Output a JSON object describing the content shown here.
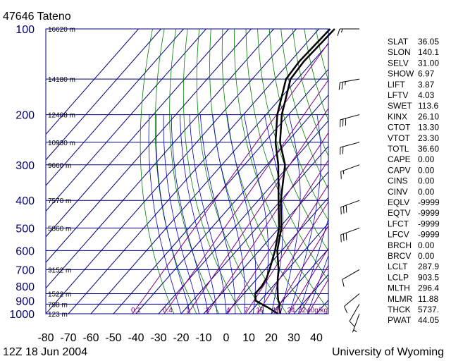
{
  "header": {
    "station": "47646  Tateno",
    "datetime": "12Z 18 Jun 2004",
    "credit": "University of Wyoming"
  },
  "colors": {
    "isobar": "#000080",
    "isotherm": "#000080",
    "dry_adiabat": "#008000",
    "moist_adiabat": "#0000cc",
    "mixing_ratio": "#800080",
    "profile": "#000000",
    "pressure_label": "#000066"
  },
  "chart_data": {
    "type": "line",
    "title": "47646  Tateno",
    "xlabel": "",
    "ylabel": "",
    "xlim": [
      -80,
      45
    ],
    "ylim": [
      1000,
      100
    ],
    "y_scale": "log",
    "x_ticks": [
      -80,
      -70,
      -60,
      -50,
      -40,
      -30,
      -20,
      -10,
      0,
      10,
      20,
      30,
      40
    ],
    "pressure_levels": [
      100,
      200,
      300,
      400,
      500,
      600,
      700,
      800,
      900,
      1000
    ],
    "isobar_lines": [
      100,
      150,
      200,
      250,
      300,
      400,
      500,
      600,
      700,
      850,
      925,
      1000
    ],
    "height_labels": [
      {
        "p": 100,
        "label": "16620 m"
      },
      {
        "p": 150,
        "label": "14180 m"
      },
      {
        "p": 200,
        "label": "12408 m"
      },
      {
        "p": 250,
        "label": "10930 m"
      },
      {
        "p": 300,
        "label": "9660 m"
      },
      {
        "p": 400,
        "label": "7570 m"
      },
      {
        "p": 500,
        "label": "5860 m"
      },
      {
        "p": 700,
        "label": "3152 m"
      },
      {
        "p": 850,
        "label": "1522 m"
      },
      {
        "p": 925,
        "label": "798 m"
      },
      {
        "p": 1000,
        "label": "123 m"
      }
    ],
    "mixing_ratio_labels": [
      {
        "w": 0.1,
        "label": "0.1"
      },
      {
        "w": 0.4,
        "label": "0.4"
      },
      {
        "w": 1,
        "label": "1"
      },
      {
        "w": 2,
        "label": "2"
      },
      {
        "w": 4,
        "label": "4"
      },
      {
        "w": 7,
        "label": "7"
      },
      {
        "w": 10,
        "label": "10"
      },
      {
        "w": 16,
        "label": "16"
      },
      {
        "w": 24,
        "label": "24"
      },
      {
        "w": 32,
        "label": "32"
      },
      {
        "w": 40,
        "label": "40g/kg"
      }
    ],
    "series": [
      {
        "name": "",
        "kind": "temperature",
        "points": [
          [
            1000,
            24
          ],
          [
            950,
            21
          ],
          [
            925,
            20
          ],
          [
            900,
            18
          ],
          [
            850,
            15
          ],
          [
            800,
            12
          ],
          [
            750,
            9
          ],
          [
            700,
            6
          ],
          [
            600,
            -2
          ],
          [
            500,
            -9
          ],
          [
            400,
            -20
          ],
          [
            300,
            -32
          ],
          [
            250,
            -43
          ],
          [
            200,
            -53
          ],
          [
            150,
            -63
          ],
          [
            130,
            -64
          ],
          [
            100,
            -63
          ]
        ]
      },
      {
        "name": "",
        "kind": "dewpoint",
        "points": [
          [
            1000,
            23
          ],
          [
            950,
            16
          ],
          [
            925,
            12
          ],
          [
            900,
            8
          ],
          [
            850,
            5
          ],
          [
            800,
            5
          ],
          [
            750,
            4
          ],
          [
            700,
            2
          ],
          [
            600,
            -3
          ],
          [
            500,
            -10
          ],
          [
            400,
            -21
          ],
          [
            300,
            -35
          ],
          [
            250,
            -45
          ],
          [
            200,
            -55
          ],
          [
            150,
            -65
          ],
          [
            130,
            -66
          ],
          [
            100,
            -65
          ]
        ]
      }
    ],
    "wind_barbs": [
      {
        "p": 100,
        "dir": 270,
        "kt": 15
      },
      {
        "p": 150,
        "dir": 260,
        "kt": 25
      },
      {
        "p": 200,
        "dir": 255,
        "kt": 30
      },
      {
        "p": 250,
        "dir": 255,
        "kt": 20
      },
      {
        "p": 300,
        "dir": 250,
        "kt": 15
      },
      {
        "p": 400,
        "dir": 250,
        "kt": 30
      },
      {
        "p": 500,
        "dir": 250,
        "kt": 30
      },
      {
        "p": 700,
        "dir": 240,
        "kt": 10
      },
      {
        "p": 850,
        "dir": 230,
        "kt": 10
      },
      {
        "p": 925,
        "dir": 210,
        "kt": 10
      },
      {
        "p": 1000,
        "dir": 200,
        "kt": 5
      }
    ]
  },
  "indices": [
    {
      "name": "SLAT",
      "value": "36.05"
    },
    {
      "name": "SLON",
      "value": "140.1"
    },
    {
      "name": "SELV",
      "value": "31.00"
    },
    {
      "name": "SHOW",
      "value": "6.97"
    },
    {
      "name": "LIFT",
      "value": "3.87"
    },
    {
      "name": "LFTV",
      "value": "4.03"
    },
    {
      "name": "SWET",
      "value": "113.6"
    },
    {
      "name": "KINX",
      "value": "26.10"
    },
    {
      "name": "CTOT",
      "value": "13.30"
    },
    {
      "name": "VTOT",
      "value": "23.30"
    },
    {
      "name": "TOTL",
      "value": "36.60"
    },
    {
      "name": "CAPE",
      "value": "0.00"
    },
    {
      "name": "CAPV",
      "value": "0.00"
    },
    {
      "name": "CINS",
      "value": "0.00"
    },
    {
      "name": "CINV",
      "value": "0.00"
    },
    {
      "name": "EQLV",
      "value": "-9999"
    },
    {
      "name": "EQTV",
      "value": "-9999"
    },
    {
      "name": "LFCT",
      "value": "-9999"
    },
    {
      "name": "LFCV",
      "value": "-9999"
    },
    {
      "name": "BRCH",
      "value": "0.00"
    },
    {
      "name": "BRCV",
      "value": "0.00"
    },
    {
      "name": "LCLT",
      "value": "287.9"
    },
    {
      "name": "LCLP",
      "value": "903.5"
    },
    {
      "name": "MLTH",
      "value": "296.4"
    },
    {
      "name": "MLMR",
      "value": "11.88"
    },
    {
      "name": "THCK",
      "value": "5737."
    },
    {
      "name": "PWAT",
      "value": "44.05"
    }
  ]
}
